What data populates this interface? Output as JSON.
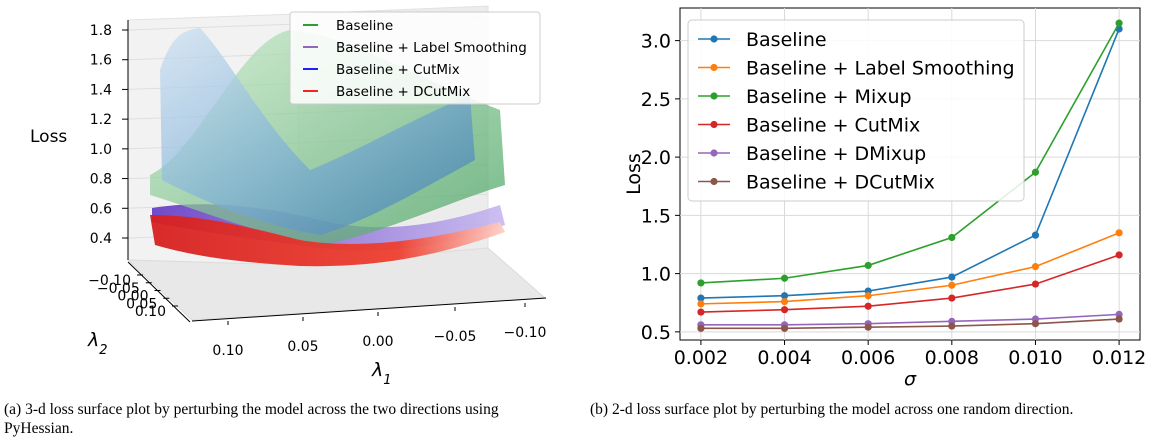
{
  "chart_data": [
    {
      "type": "surface3d",
      "caption": "(a) 3-d loss surface plot by perturbing the model across the two directions using PyHessian.",
      "zlabel": "Loss",
      "xlabel": "λ1",
      "ylabel": "λ2",
      "z_ticks": [
        "0.4",
        "0.6",
        "0.8",
        "1.0",
        "1.2",
        "1.4",
        "1.6",
        "1.8"
      ],
      "x_ticks": [
        "0.10",
        "0.05",
        "0.00",
        "−0.05",
        "−0.10"
      ],
      "y_ticks": [
        "−0.10",
        "−0.05",
        "0.00",
        "0.05",
        "0.10"
      ],
      "zlim": [
        0.25,
        1.85
      ],
      "legend_position": "top-right",
      "series": [
        {
          "name": "Baseline",
          "color": "#2ca02c"
        },
        {
          "name": "Baseline + Label Smoothing",
          "color": "#9467bd"
        },
        {
          "name": "Baseline + CutMix",
          "color": "#1f1fff"
        },
        {
          "name": "Baseline + DCutMix",
          "color": "#ff2020"
        }
      ]
    },
    {
      "type": "line",
      "caption": "(b) 2-d loss surface plot by perturbing the model across one random direction.",
      "xlabel": "σ",
      "ylabel": "Loss",
      "x": [
        0.002,
        0.004,
        0.006,
        0.008,
        0.01,
        0.012
      ],
      "x_ticks": [
        "0.002",
        "0.004",
        "0.006",
        "0.008",
        "0.010",
        "0.012"
      ],
      "y_ticks": [
        "0.5",
        "1.0",
        "1.5",
        "2.0",
        "2.5",
        "3.0"
      ],
      "xlim": [
        0.0015,
        0.0125
      ],
      "ylim": [
        0.43,
        3.28
      ],
      "grid": true,
      "legend_position": "top-left",
      "series": [
        {
          "name": "Baseline",
          "color": "#1f77b4",
          "values": [
            0.79,
            0.81,
            0.85,
            0.97,
            1.33,
            3.1
          ]
        },
        {
          "name": "Baseline + Label Smoothing",
          "color": "#ff7f0e",
          "values": [
            0.74,
            0.76,
            0.81,
            0.9,
            1.06,
            1.35
          ]
        },
        {
          "name": "Baseline + Mixup",
          "color": "#2ca02c",
          "values": [
            0.92,
            0.96,
            1.07,
            1.31,
            1.87,
            3.15
          ]
        },
        {
          "name": "Baseline + CutMix",
          "color": "#d62728",
          "values": [
            0.67,
            0.69,
            0.72,
            0.79,
            0.91,
            1.16
          ]
        },
        {
          "name": "Baseline + DMixup",
          "color": "#9467bd",
          "values": [
            0.56,
            0.56,
            0.57,
            0.59,
            0.61,
            0.65
          ]
        },
        {
          "name": "Baseline + DCutMix",
          "color": "#8c564b",
          "values": [
            0.53,
            0.53,
            0.54,
            0.55,
            0.57,
            0.61
          ]
        }
      ]
    }
  ]
}
